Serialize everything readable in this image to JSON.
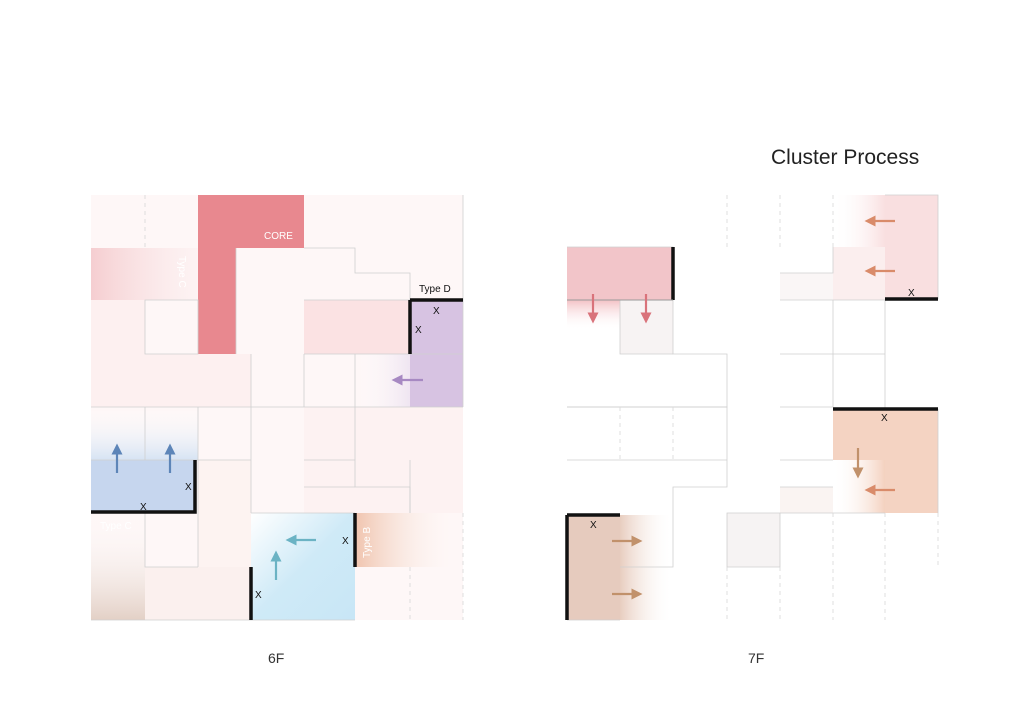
{
  "title": "Cluster Process",
  "floors": [
    {
      "label": "6F"
    },
    {
      "label": "7F"
    }
  ],
  "unit_types": {
    "core": "CORE",
    "type_b": "Type B",
    "type_c": "Type C",
    "type_d": "Type D"
  },
  "marker": "X",
  "colors": {
    "core": "#e8888f",
    "pink_light": "#f7dede",
    "pink_pale": "#fdf0f0",
    "purple": "#d7c2e2",
    "blue": "#c5d5ee",
    "cyan": "#cdeaf7",
    "peach": "#f2d3c4",
    "tan": "#e6cbbe",
    "arrow_blue": "#5d85b8",
    "arrow_cyan": "#6bb3c4",
    "arrow_purple": "#a789c2",
    "arrow_red": "#d9737b",
    "arrow_orange": "#d98b6a",
    "arrow_brown": "#c1916b"
  }
}
